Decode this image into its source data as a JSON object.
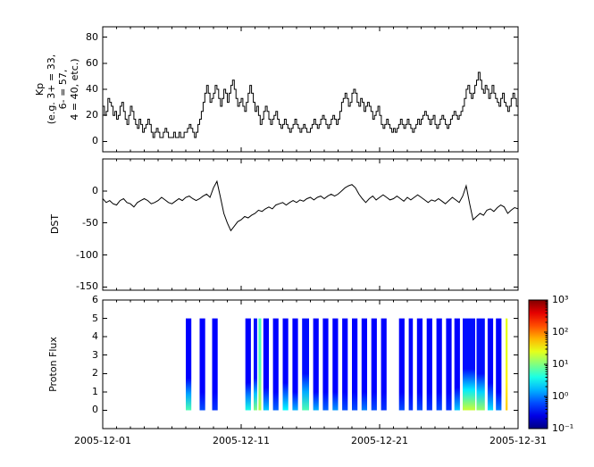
{
  "figure": {
    "background": "#ffffff",
    "foreground": "#000000"
  },
  "chart_data": [
    {
      "type": "line",
      "name": "kp-index",
      "line_style": "steps-post",
      "line_color": "#000000",
      "ylabel_lines": [
        "Kp",
        "(e.g. 3+ = 33,",
        "6- = 57,",
        "4 = 40, etc.)"
      ],
      "ylim": [
        -8,
        88
      ],
      "yticks": [
        0,
        20,
        40,
        60,
        80
      ],
      "ytick_labels": [
        "0",
        "20",
        "40",
        "60",
        "80"
      ],
      "xlim_days": [
        1,
        31
      ],
      "xticks": [
        1,
        11,
        21,
        31
      ],
      "x_start_day": 1,
      "x_step_days": 0.125,
      "values": [
        27,
        20,
        23,
        33,
        30,
        27,
        20,
        23,
        17,
        20,
        27,
        30,
        23,
        17,
        13,
        20,
        27,
        23,
        17,
        13,
        10,
        17,
        13,
        7,
        10,
        13,
        17,
        13,
        7,
        3,
        7,
        10,
        7,
        3,
        3,
        7,
        10,
        7,
        3,
        3,
        3,
        7,
        3,
        3,
        7,
        3,
        3,
        7,
        7,
        10,
        13,
        10,
        7,
        3,
        7,
        13,
        17,
        23,
        30,
        37,
        43,
        37,
        30,
        33,
        37,
        43,
        40,
        33,
        27,
        33,
        40,
        37,
        30,
        37,
        43,
        47,
        40,
        33,
        27,
        30,
        33,
        27,
        23,
        30,
        37,
        43,
        37,
        30,
        23,
        27,
        20,
        13,
        17,
        23,
        27,
        23,
        17,
        13,
        17,
        20,
        23,
        17,
        13,
        10,
        13,
        17,
        13,
        10,
        7,
        10,
        13,
        17,
        13,
        10,
        7,
        10,
        13,
        10,
        7,
        7,
        10,
        13,
        17,
        13,
        10,
        13,
        17,
        20,
        17,
        13,
        10,
        13,
        17,
        20,
        17,
        13,
        17,
        23,
        30,
        33,
        37,
        33,
        27,
        30,
        37,
        40,
        37,
        30,
        27,
        33,
        30,
        23,
        27,
        30,
        27,
        23,
        17,
        20,
        23,
        27,
        20,
        13,
        10,
        13,
        17,
        13,
        10,
        7,
        10,
        7,
        10,
        13,
        17,
        13,
        10,
        13,
        17,
        13,
        10,
        7,
        10,
        13,
        17,
        13,
        17,
        20,
        23,
        20,
        17,
        13,
        17,
        20,
        13,
        10,
        13,
        17,
        20,
        17,
        13,
        10,
        13,
        17,
        20,
        23,
        20,
        17,
        20,
        23,
        27,
        33,
        40,
        43,
        37,
        33,
        37,
        43,
        47,
        53,
        47,
        40,
        37,
        43,
        40,
        33,
        37,
        43,
        37,
        33,
        30,
        27,
        33,
        37,
        30,
        27,
        23,
        27,
        33,
        37,
        33,
        27,
        30,
        33,
        27,
        23,
        27,
        30,
        33,
        30
      ]
    },
    {
      "type": "line",
      "name": "dst-index",
      "ylabel": "DST",
      "line_color": "#000000",
      "ylim": [
        -155,
        50
      ],
      "yticks": [
        0,
        -50,
        -100,
        -150
      ],
      "ytick_labels": [
        "0",
        "-50",
        "-100",
        "-150"
      ],
      "xlim_days": [
        1,
        31
      ],
      "xticks": [
        1,
        11,
        21,
        31
      ],
      "x_start_day": 1,
      "x_step_days": 0.25,
      "values": [
        -12,
        -18,
        -15,
        -20,
        -22,
        -15,
        -12,
        -18,
        -20,
        -25,
        -18,
        -15,
        -12,
        -15,
        -20,
        -18,
        -15,
        -10,
        -14,
        -18,
        -20,
        -16,
        -12,
        -15,
        -10,
        -8,
        -12,
        -15,
        -12,
        -8,
        -5,
        -10,
        5,
        15,
        -10,
        -35,
        -50,
        -62,
        -55,
        -48,
        -45,
        -40,
        -42,
        -38,
        -35,
        -30,
        -32,
        -28,
        -25,
        -28,
        -22,
        -20,
        -18,
        -22,
        -18,
        -15,
        -18,
        -14,
        -16,
        -12,
        -10,
        -14,
        -10,
        -8,
        -12,
        -8,
        -5,
        -8,
        -5,
        0,
        5,
        8,
        10,
        5,
        -5,
        -12,
        -18,
        -12,
        -8,
        -14,
        -10,
        -6,
        -10,
        -14,
        -12,
        -8,
        -12,
        -16,
        -10,
        -14,
        -10,
        -6,
        -10,
        -14,
        -18,
        -14,
        -16,
        -12,
        -16,
        -20,
        -15,
        -10,
        -14,
        -18,
        -8,
        8,
        -20,
        -45,
        -40,
        -35,
        -38,
        -30,
        -28,
        -32,
        -26,
        -22,
        -25,
        -35,
        -30,
        -26,
        -28,
        -24,
        -28,
        -25
      ]
    },
    {
      "type": "heatmap",
      "name": "proton-flux",
      "ylabel": "Proton Flux",
      "colormap": "jet",
      "value_scale": "log10",
      "ylim": [
        -1,
        6
      ],
      "yticks": [
        0,
        1,
        2,
        3,
        4,
        5,
        6
      ],
      "ytick_labels": [
        "0",
        "1",
        "2",
        "3",
        "4",
        "5",
        "6"
      ],
      "xlim_days": [
        1,
        31
      ],
      "xticks": [
        1,
        11,
        21,
        31
      ],
      "xtick_labels": [
        "2005-12-01",
        "2005-12-11",
        "2005-12-21",
        "2005-12-31"
      ],
      "band_y": [
        0,
        5
      ],
      "clim_log": [
        -1,
        3
      ],
      "colorbar_tick_logs": [
        -1,
        0,
        1,
        2,
        3
      ],
      "colorbar_tick_labels": [
        "10⁻¹",
        "10⁰",
        "10¹",
        "10²",
        "10³"
      ],
      "stripes": [
        {
          "x0": 7.0,
          "x1": 7.4,
          "v_top": -0.5,
          "v_bottom": 0.8,
          "fade": 0.35
        },
        {
          "x0": 8.0,
          "x1": 8.4,
          "v_top": -0.5,
          "v_bottom": -0.2,
          "fade": 0.2
        },
        {
          "x0": 8.9,
          "x1": 9.3,
          "v_top": -0.5,
          "v_bottom": -0.3,
          "fade": 0.2
        },
        {
          "x0": 11.3,
          "x1": 11.7,
          "v_top": -0.5,
          "v_bottom": 0.6,
          "fade": 0.3
        },
        {
          "x0": 11.9,
          "x1": 12.15,
          "v_top": -0.45,
          "v_bottom": 1.0,
          "fade": 0.35
        },
        {
          "x0": 12.25,
          "x1": 12.45,
          "v_top": 0.8,
          "v_bottom": 1.2,
          "fade": 0.5
        },
        {
          "x0": 12.6,
          "x1": 13.0,
          "v_top": -0.5,
          "v_bottom": 0.3,
          "fade": 0.25
        },
        {
          "x0": 13.3,
          "x1": 13.7,
          "v_top": -0.5,
          "v_bottom": -0.1,
          "fade": 0.2
        },
        {
          "x0": 14.0,
          "x1": 14.4,
          "v_top": -0.5,
          "v_bottom": 0.5,
          "fade": 0.3
        },
        {
          "x0": 14.7,
          "x1": 15.1,
          "v_top": -0.5,
          "v_bottom": 0.2,
          "fade": 0.2
        },
        {
          "x0": 15.4,
          "x1": 15.9,
          "v_top": -0.45,
          "v_bottom": 0.8,
          "fade": 0.4
        },
        {
          "x0": 16.2,
          "x1": 16.6,
          "v_top": -0.5,
          "v_bottom": 0.2,
          "fade": 0.2
        },
        {
          "x0": 16.9,
          "x1": 17.3,
          "v_top": -0.5,
          "v_bottom": -0.1,
          "fade": 0.2
        },
        {
          "x0": 17.6,
          "x1": 18.0,
          "v_top": -0.5,
          "v_bottom": 0.1,
          "fade": 0.2
        },
        {
          "x0": 18.3,
          "x1": 18.7,
          "v_top": -0.5,
          "v_bottom": -0.2,
          "fade": 0.2
        },
        {
          "x0": 19.0,
          "x1": 19.4,
          "v_top": -0.5,
          "v_bottom": -0.2,
          "fade": 0.2
        },
        {
          "x0": 19.7,
          "x1": 20.1,
          "v_top": -0.5,
          "v_bottom": 0.0,
          "fade": 0.2
        },
        {
          "x0": 20.4,
          "x1": 20.8,
          "v_top": -0.5,
          "v_bottom": -0.2,
          "fade": 0.2
        },
        {
          "x0": 21.1,
          "x1": 21.5,
          "v_top": -0.5,
          "v_bottom": -0.3,
          "fade": 0.2
        },
        {
          "x0": 22.4,
          "x1": 22.8,
          "v_top": -0.5,
          "v_bottom": -0.2,
          "fade": 0.2
        },
        {
          "x0": 23.1,
          "x1": 23.4,
          "v_top": -0.5,
          "v_bottom": -0.3,
          "fade": 0.2
        },
        {
          "x0": 23.7,
          "x1": 24.1,
          "v_top": -0.5,
          "v_bottom": -0.2,
          "fade": 0.2
        },
        {
          "x0": 24.4,
          "x1": 24.8,
          "v_top": -0.5,
          "v_bottom": -0.3,
          "fade": 0.2
        },
        {
          "x0": 25.1,
          "x1": 25.5,
          "v_top": -0.5,
          "v_bottom": -0.2,
          "fade": 0.2
        },
        {
          "x0": 25.8,
          "x1": 26.2,
          "v_top": -0.5,
          "v_bottom": -0.3,
          "fade": 0.2
        },
        {
          "x0": 26.4,
          "x1": 26.8,
          "v_top": -0.5,
          "v_bottom": 0.3,
          "fade": 0.25
        },
        {
          "x0": 27.0,
          "x1": 27.9,
          "v_top": -0.45,
          "v_bottom": 1.3,
          "fade": 0.45
        },
        {
          "x0": 28.0,
          "x1": 28.6,
          "v_top": -0.45,
          "v_bottom": 1.1,
          "fade": 0.4
        },
        {
          "x0": 28.8,
          "x1": 29.2,
          "v_top": -0.5,
          "v_bottom": 0.4,
          "fade": 0.3
        },
        {
          "x0": 29.4,
          "x1": 29.8,
          "v_top": -0.5,
          "v_bottom": 0.0,
          "fade": 0.2
        },
        {
          "x0": 30.1,
          "x1": 30.25,
          "v_top": 1.4,
          "v_bottom": 1.7,
          "fade": 0.6
        }
      ]
    }
  ]
}
